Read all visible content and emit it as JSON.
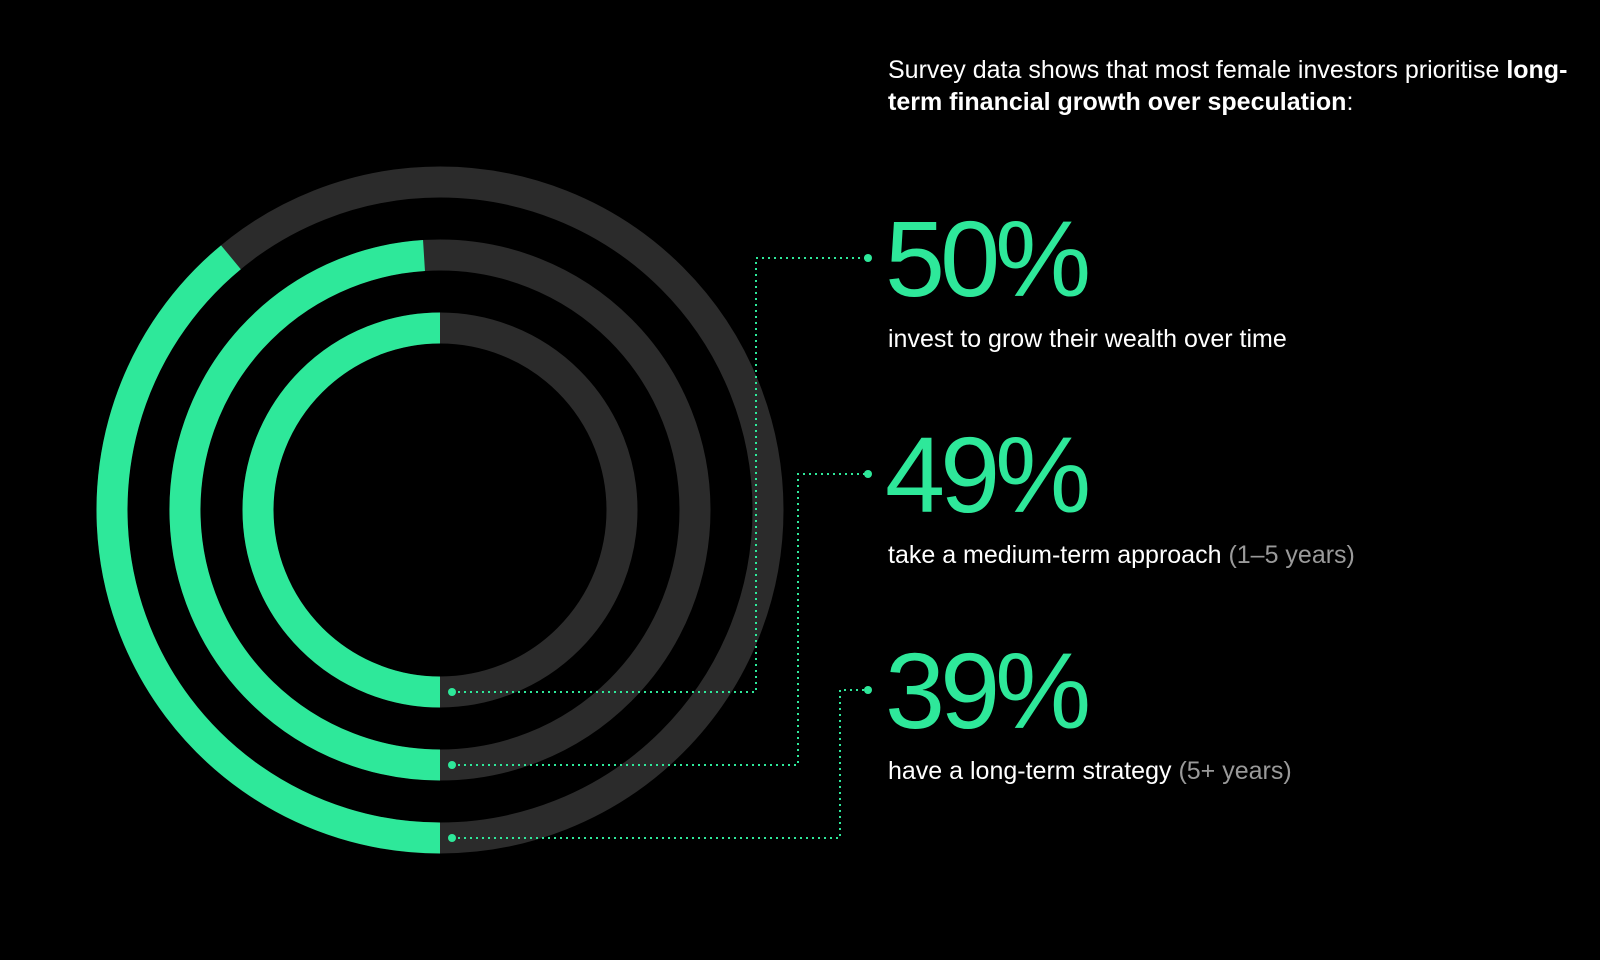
{
  "intro": {
    "lead": "Survey data shows that most female investors prioritise ",
    "emphasis": "long-term financial growth over speculation",
    "tail": ":"
  },
  "stats": [
    {
      "value": "50%",
      "caption": "invest to grow their wealth over time",
      "note": ""
    },
    {
      "value": "49%",
      "caption": "take a medium-term approach",
      "note": "(1–5 years)"
    },
    {
      "value": "39%",
      "caption": "have a long-term strategy",
      "note": "(5+ years)"
    }
  ],
  "colors": {
    "accent": "#2ee89a",
    "track": "#2b2b2b",
    "background": "#000000",
    "text": "#ffffff",
    "muted": "#9a9a9a"
  },
  "chart_data": {
    "type": "radial-bar",
    "start": "bottom",
    "direction": "clockwise",
    "series": [
      {
        "value": 50,
        "label": "50%"
      },
      {
        "value": 49,
        "label": "49%"
      },
      {
        "value": 39,
        "label": "39%"
      }
    ],
    "max": 100
  }
}
